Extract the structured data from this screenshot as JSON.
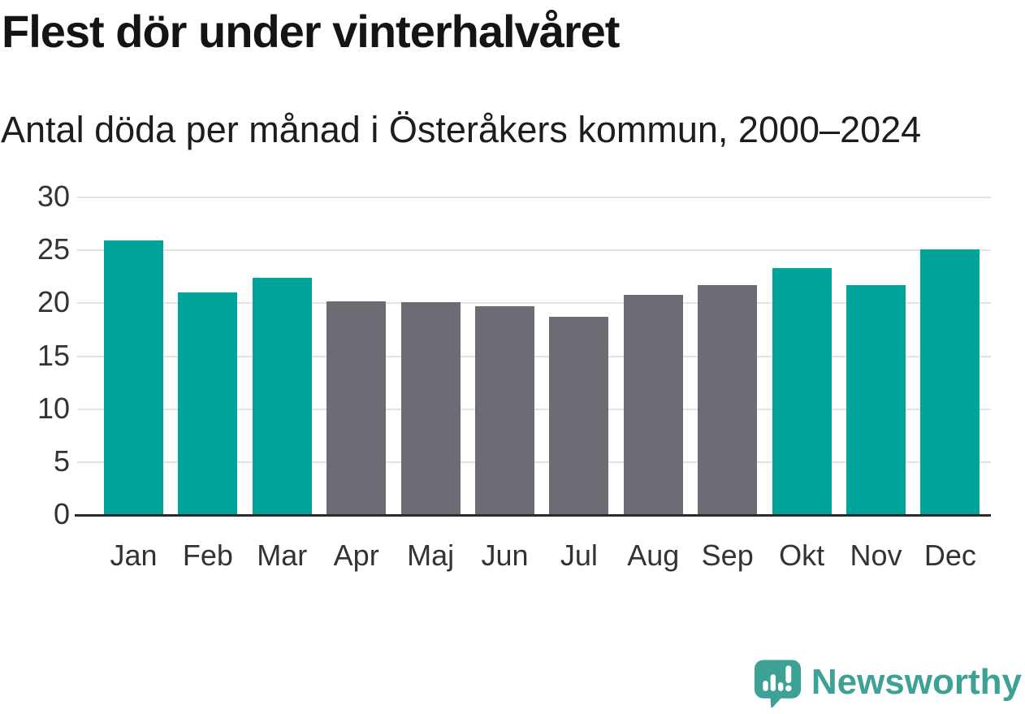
{
  "chart_data": {
    "type": "bar",
    "title": "Flest dör under vinterhalvåret",
    "subtitle": "Antal döda per månad i Österåkers kommun, 2000–2024",
    "categories": [
      "Jan",
      "Feb",
      "Mar",
      "Apr",
      "Maj",
      "Jun",
      "Jul",
      "Aug",
      "Sep",
      "Okt",
      "Nov",
      "Dec"
    ],
    "values": [
      25.9,
      21.0,
      22.4,
      20.2,
      20.1,
      19.7,
      18.7,
      20.8,
      21.7,
      23.3,
      21.7,
      25.1
    ],
    "highlighted_categories": [
      "Jan",
      "Feb",
      "Mar",
      "Okt",
      "Nov",
      "Dec"
    ],
    "highlight_color": "#00a49a",
    "base_color": "#6c6c74",
    "xlabel": "",
    "ylabel": "",
    "ylim": [
      0,
      30
    ],
    "yticks": [
      0,
      5,
      10,
      15,
      20,
      25,
      30
    ],
    "grid": true,
    "legend": false
  },
  "branding": {
    "logo_text": "Newsworthy",
    "logo_color": "#3da195",
    "icon": "newsworthy-speech-bubble-chart-icon"
  }
}
